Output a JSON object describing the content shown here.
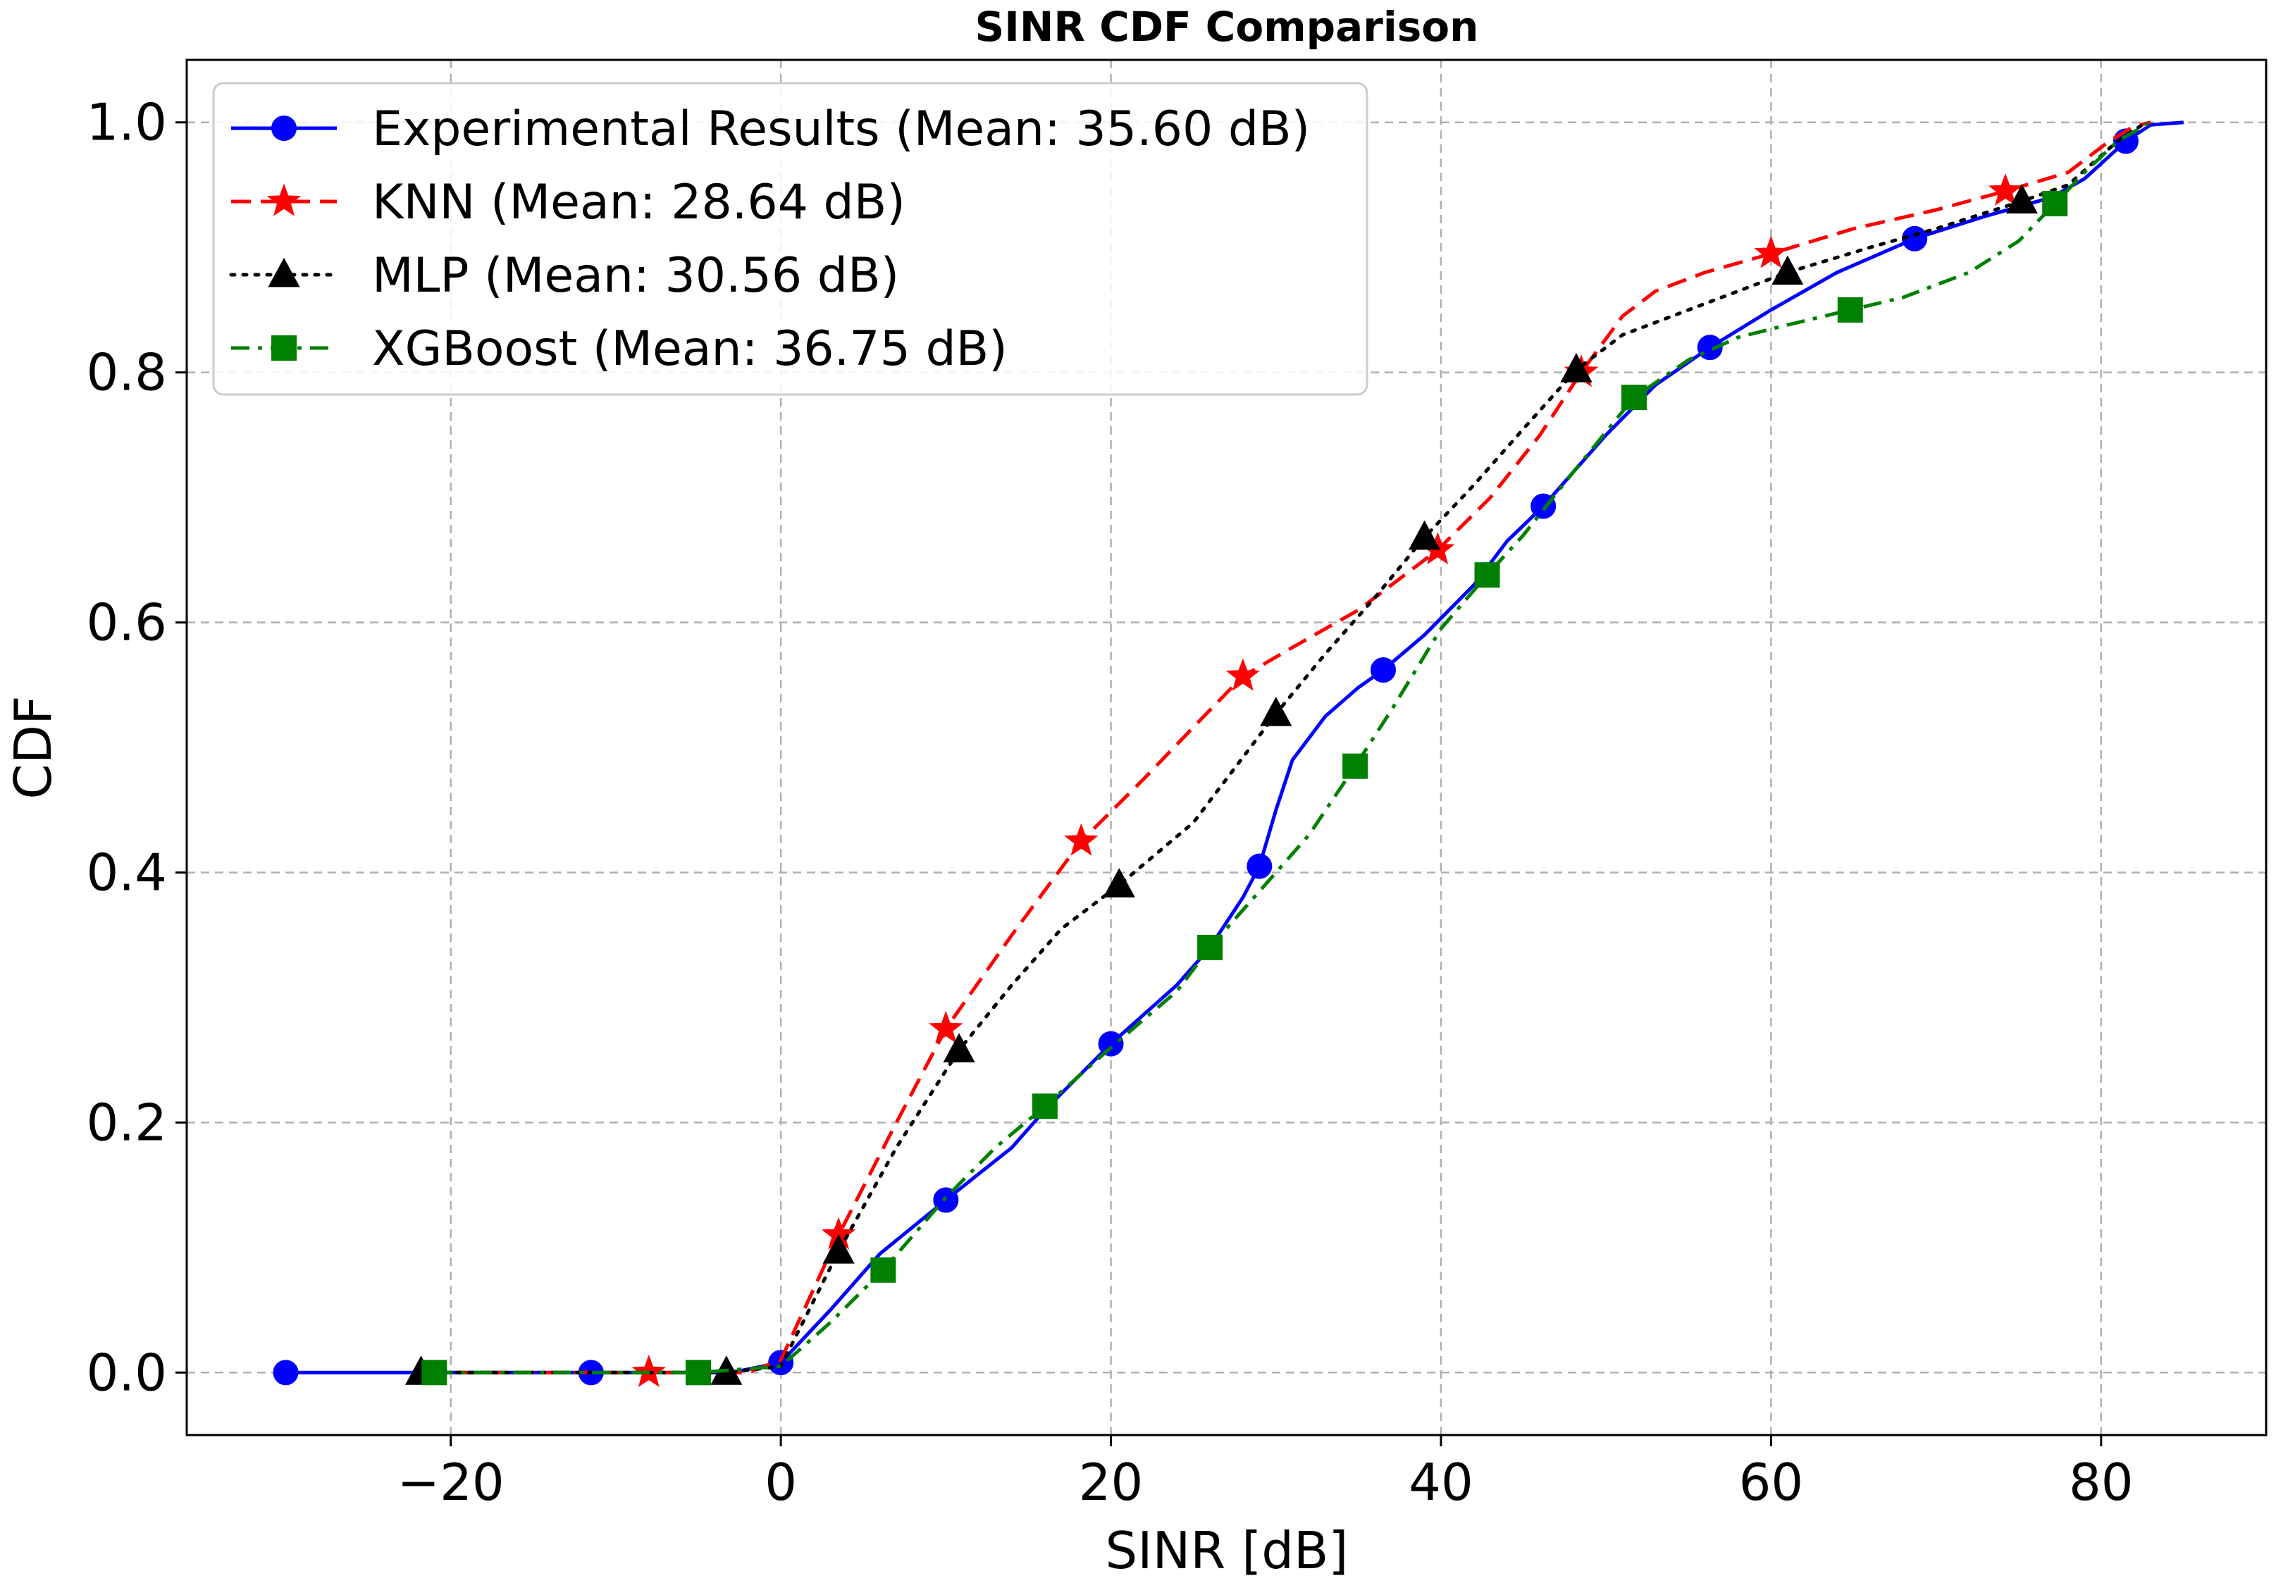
{
  "chart_data": {
    "type": "line",
    "title": "SINR CDF Comparison",
    "xlabel": "SINR [dB]",
    "ylabel": "CDF",
    "xlim": [
      -36,
      90
    ],
    "ylim": [
      -0.05,
      1.05
    ],
    "xticks": [
      -20,
      0,
      20,
      40,
      60,
      80
    ],
    "xtick_labels": [
      "−20",
      "0",
      "20",
      "40",
      "60",
      "80"
    ],
    "yticks": [
      0.0,
      0.2,
      0.4,
      0.6,
      0.8,
      1.0
    ],
    "ytick_labels": [
      "0.0",
      "0.2",
      "0.4",
      "0.6",
      "0.8",
      "1.0"
    ],
    "grid": true,
    "legend_position": "top-left",
    "series": [
      {
        "name": "Experimental Results (Mean: 35.60 dB)",
        "color": "#0000ff",
        "dash": "solid",
        "marker": "circle",
        "curve": [
          [
            -30,
            0.0
          ],
          [
            -11.5,
            0.0
          ],
          [
            -3,
            0.0
          ],
          [
            0,
            0.008
          ],
          [
            3,
            0.05
          ],
          [
            6,
            0.095
          ],
          [
            10,
            0.138
          ],
          [
            14,
            0.18
          ],
          [
            16,
            0.21
          ],
          [
            20,
            0.263
          ],
          [
            24,
            0.31
          ],
          [
            26,
            0.34
          ],
          [
            28,
            0.38
          ],
          [
            29,
            0.405
          ],
          [
            30,
            0.45
          ],
          [
            31,
            0.49
          ],
          [
            33,
            0.525
          ],
          [
            35,
            0.548
          ],
          [
            36.5,
            0.562
          ],
          [
            39,
            0.59
          ],
          [
            42,
            0.63
          ],
          [
            44,
            0.665
          ],
          [
            46.2,
            0.693
          ],
          [
            48,
            0.72
          ],
          [
            50,
            0.75
          ],
          [
            53,
            0.79
          ],
          [
            56.3,
            0.82
          ],
          [
            60,
            0.85
          ],
          [
            64,
            0.88
          ],
          [
            68.7,
            0.907
          ],
          [
            73,
            0.925
          ],
          [
            77,
            0.94
          ],
          [
            79,
            0.955
          ],
          [
            81.5,
            0.985
          ],
          [
            83,
            0.998
          ],
          [
            85,
            1.0
          ]
        ],
        "markers": [
          [
            -30,
            0.0
          ],
          [
            -11.5,
            0.0
          ],
          [
            0,
            0.008
          ],
          [
            10,
            0.138
          ],
          [
            20,
            0.263
          ],
          [
            29,
            0.405
          ],
          [
            36.5,
            0.562
          ],
          [
            46.2,
            0.693
          ],
          [
            56.3,
            0.82
          ],
          [
            68.7,
            0.907
          ],
          [
            81.5,
            0.985
          ]
        ]
      },
      {
        "name": "KNN (Mean: 28.64 dB)",
        "color": "#ff0000",
        "dash": "dashed",
        "marker": "star",
        "curve": [
          [
            -21.5,
            0.0
          ],
          [
            -8,
            0.0
          ],
          [
            -2,
            0.0
          ],
          [
            0,
            0.01
          ],
          [
            3.5,
            0.11
          ],
          [
            7,
            0.2
          ],
          [
            10,
            0.275
          ],
          [
            14,
            0.35
          ],
          [
            18.2,
            0.425
          ],
          [
            22,
            0.475
          ],
          [
            26,
            0.53
          ],
          [
            28,
            0.557
          ],
          [
            31,
            0.58
          ],
          [
            35,
            0.61
          ],
          [
            39.8,
            0.658
          ],
          [
            43,
            0.7
          ],
          [
            46,
            0.75
          ],
          [
            48.5,
            0.8
          ],
          [
            51,
            0.845
          ],
          [
            53,
            0.865
          ],
          [
            56,
            0.88
          ],
          [
            60,
            0.895
          ],
          [
            65,
            0.915
          ],
          [
            70,
            0.93
          ],
          [
            74.2,
            0.945
          ],
          [
            78,
            0.96
          ],
          [
            80.5,
            0.985
          ],
          [
            82,
            0.997
          ],
          [
            83,
            1.0
          ]
        ],
        "markers": [
          [
            -8,
            0.0
          ],
          [
            3.5,
            0.11
          ],
          [
            10,
            0.275
          ],
          [
            18.2,
            0.425
          ],
          [
            28,
            0.557
          ],
          [
            39.8,
            0.658
          ],
          [
            48.5,
            0.8
          ],
          [
            60,
            0.895
          ],
          [
            74.2,
            0.945
          ]
        ]
      },
      {
        "name": "MLP (Mean: 30.56 dB)",
        "color": "#000000",
        "dash": "dotted",
        "marker": "triangle",
        "curve": [
          [
            -21.8,
            0.0
          ],
          [
            -3.3,
            0.0
          ],
          [
            0,
            0.005
          ],
          [
            3.5,
            0.097
          ],
          [
            7,
            0.18
          ],
          [
            10.8,
            0.258
          ],
          [
            14,
            0.31
          ],
          [
            17,
            0.355
          ],
          [
            20.5,
            0.39
          ],
          [
            25,
            0.44
          ],
          [
            30,
            0.527
          ],
          [
            33,
            0.575
          ],
          [
            36,
            0.62
          ],
          [
            39,
            0.668
          ],
          [
            42,
            0.71
          ],
          [
            45,
            0.755
          ],
          [
            48.2,
            0.802
          ],
          [
            51,
            0.83
          ],
          [
            55,
            0.85
          ],
          [
            61,
            0.88
          ],
          [
            66,
            0.9
          ],
          [
            70,
            0.915
          ],
          [
            75.2,
            0.937
          ],
          [
            78,
            0.95
          ],
          [
            81,
            0.985
          ],
          [
            82.5,
            0.998
          ]
        ],
        "markers": [
          [
            -21.8,
            0.0
          ],
          [
            -3.3,
            0.0
          ],
          [
            3.5,
            0.097
          ],
          [
            10.8,
            0.258
          ],
          [
            20.5,
            0.39
          ],
          [
            30,
            0.527
          ],
          [
            39,
            0.668
          ],
          [
            48.2,
            0.802
          ],
          [
            61,
            0.88
          ],
          [
            75.2,
            0.937
          ]
        ]
      },
      {
        "name": "XGBoost (Mean: 36.75 dB)",
        "color": "#008000",
        "dash": "dashdot",
        "marker": "square",
        "curve": [
          [
            -21,
            0.0
          ],
          [
            -5,
            0.0
          ],
          [
            0,
            0.005
          ],
          [
            3,
            0.04
          ],
          [
            6.2,
            0.082
          ],
          [
            10,
            0.14
          ],
          [
            13,
            0.18
          ],
          [
            16,
            0.213
          ],
          [
            20,
            0.26
          ],
          [
            24,
            0.305
          ],
          [
            26,
            0.34
          ],
          [
            28,
            0.37
          ],
          [
            30,
            0.4
          ],
          [
            32,
            0.43
          ],
          [
            34.8,
            0.485
          ],
          [
            37,
            0.53
          ],
          [
            40,
            0.595
          ],
          [
            42.8,
            0.638
          ],
          [
            45,
            0.67
          ],
          [
            48,
            0.72
          ],
          [
            51.7,
            0.78
          ],
          [
            55,
            0.81
          ],
          [
            58,
            0.828
          ],
          [
            61,
            0.838
          ],
          [
            64.8,
            0.85
          ],
          [
            68,
            0.86
          ],
          [
            72,
            0.88
          ],
          [
            75,
            0.905
          ],
          [
            77.2,
            0.935
          ],
          [
            79,
            0.96
          ],
          [
            81,
            0.985
          ],
          [
            83,
            1.0
          ]
        ],
        "markers": [
          [
            -21,
            0.0
          ],
          [
            -5,
            0.0
          ],
          [
            6.2,
            0.082
          ],
          [
            16,
            0.213
          ],
          [
            26,
            0.34
          ],
          [
            34.8,
            0.485
          ],
          [
            42.8,
            0.638
          ],
          [
            51.7,
            0.78
          ],
          [
            64.8,
            0.85
          ],
          [
            77.2,
            0.935
          ]
        ]
      }
    ]
  }
}
